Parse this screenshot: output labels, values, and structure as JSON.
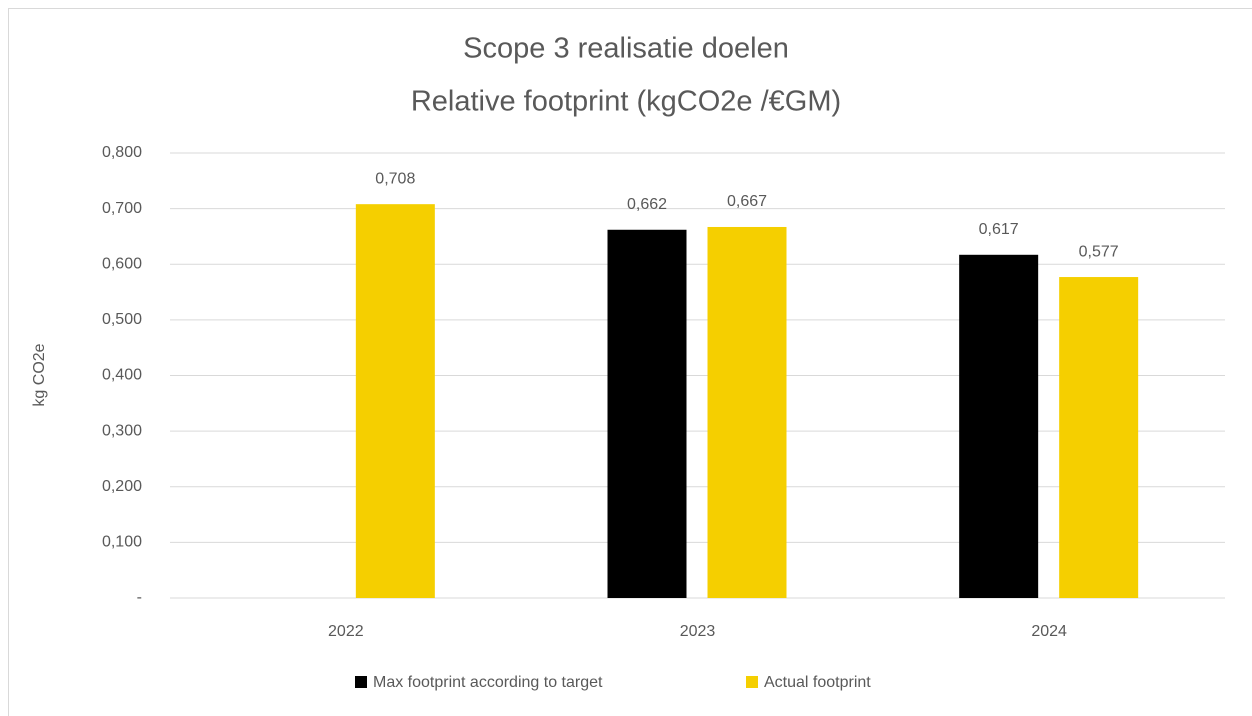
{
  "chart_data": {
    "type": "bar",
    "title": "Scope 3 realisatie doelen",
    "subtitle": "Relative footprint (kgCO2e /€GM)",
    "y_label": "kg CO2e",
    "categories": [
      "2022",
      "2023",
      "2024"
    ],
    "series": [
      {
        "name": "Max footprint according to target",
        "color": "#000000",
        "values": [
          null,
          0.662,
          0.617
        ],
        "value_labels": [
          null,
          "0,662",
          "0,617"
        ]
      },
      {
        "name": "Actual footprint",
        "color": "#f5cf00",
        "values": [
          0.708,
          0.667,
          0.577
        ],
        "value_labels": [
          "0,708",
          "0,667",
          "0,577"
        ]
      }
    ],
    "ylim": [
      0,
      0.8
    ],
    "yticks": [
      {
        "value": 0,
        "label": "-"
      },
      {
        "value": 0.1,
        "label": "0,100"
      },
      {
        "value": 0.2,
        "label": "0,200"
      },
      {
        "value": 0.3,
        "label": "0,300"
      },
      {
        "value": 0.4,
        "label": "0,400"
      },
      {
        "value": 0.5,
        "label": "0,500"
      },
      {
        "value": 0.6,
        "label": "0,600"
      },
      {
        "value": 0.7,
        "label": "0,700"
      },
      {
        "value": 0.8,
        "label": "0,800"
      }
    ],
    "grid": true,
    "legend": "bottom"
  }
}
